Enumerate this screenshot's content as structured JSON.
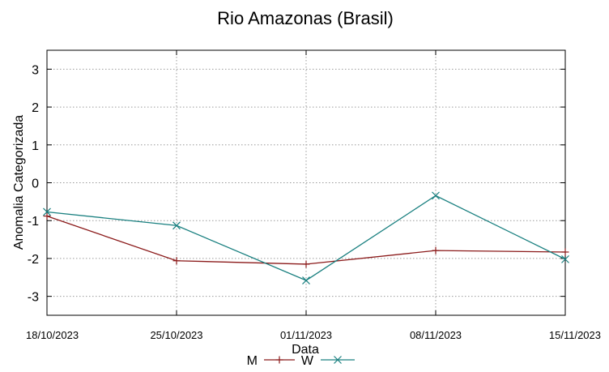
{
  "chart_data": {
    "type": "line",
    "title": "Rio Amazonas (Brasil)",
    "xlabel": "Data",
    "ylabel": "Anomalia Categorizada",
    "categories": [
      "18/10/2023",
      "25/10/2023",
      "01/11/2023",
      "08/11/2023",
      "15/11/2023"
    ],
    "ylim": [
      -3.5,
      3.5
    ],
    "yticks": [
      "3",
      "2",
      "1",
      "0",
      "-1",
      "-2",
      "-3"
    ],
    "ytick_values": [
      3,
      2,
      1,
      0,
      -1,
      -2,
      -3
    ],
    "grid": true,
    "legend_position": "bottom-center",
    "series": [
      {
        "name": "M",
        "color": "#8b1a1a",
        "marker": "plus",
        "values": [
          -0.88,
          -2.06,
          -2.15,
          -1.79,
          -1.83
        ]
      },
      {
        "name": "W",
        "color": "#1a8080",
        "marker": "cross",
        "values": [
          -0.77,
          -1.13,
          -2.58,
          -0.34,
          -2.02
        ]
      }
    ]
  }
}
